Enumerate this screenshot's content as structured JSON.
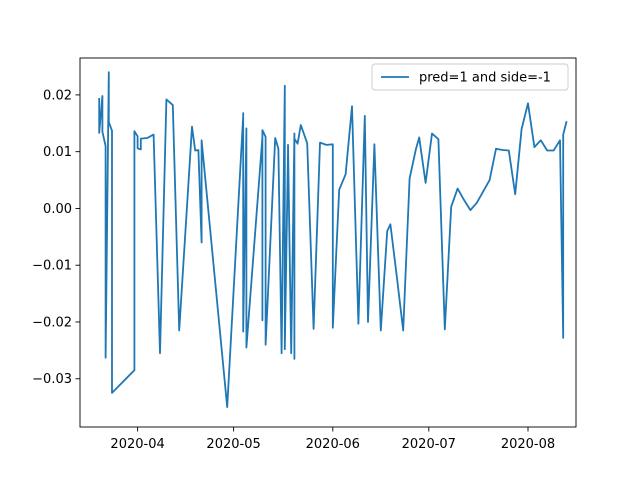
{
  "chart_data": {
    "type": "line",
    "title": "",
    "xlabel": "",
    "ylabel": "",
    "xlim": [
      "2020-03-14",
      "2020-08-16"
    ],
    "ylim": [
      -0.0385,
      0.0265
    ],
    "x_ticks": [
      "2020-04-01",
      "2020-05-01",
      "2020-06-01",
      "2020-07-01",
      "2020-08-01"
    ],
    "x_tick_labels": [
      "2020-04",
      "2020-05",
      "2020-06",
      "2020-07",
      "2020-08"
    ],
    "y_ticks": [
      -0.03,
      -0.02,
      -0.01,
      0.0,
      0.01,
      0.02
    ],
    "y_tick_labels": [
      "−0.03",
      "−0.02",
      "−0.01",
      "0.00",
      "0.01",
      "0.02"
    ],
    "grid": false,
    "legend_position": "top-right",
    "series": [
      {
        "name": "pred=1 and side=-1",
        "color": "#1f77b4",
        "x": [
          "2020-03-20",
          "2020-03-20",
          "2020-03-21",
          "2020-03-21",
          "2020-03-22",
          "2020-03-22",
          "2020-03-22",
          "2020-03-23",
          "2020-03-23",
          "2020-03-24",
          "2020-03-24",
          "2020-03-24",
          "2020-03-31",
          "2020-03-31",
          "2020-04-01",
          "2020-04-01",
          "2020-04-02",
          "2020-04-02",
          "2020-04-04",
          "2020-04-06",
          "2020-04-08",
          "2020-04-10",
          "2020-04-12",
          "2020-04-14",
          "2020-04-18",
          "2020-04-19",
          "2020-04-20",
          "2020-04-21",
          "2020-04-21",
          "2020-04-29",
          "2020-05-04",
          "2020-05-04",
          "2020-05-04",
          "2020-05-05",
          "2020-05-05",
          "2020-05-05",
          "2020-05-10",
          "2020-05-10",
          "2020-05-10",
          "2020-05-11",
          "2020-05-11",
          "2020-05-14",
          "2020-05-15",
          "2020-05-16",
          "2020-05-17",
          "2020-05-17",
          "2020-05-18",
          "2020-05-18",
          "2020-05-19",
          "2020-05-20",
          "2020-05-20",
          "2020-05-20",
          "2020-05-20",
          "2020-05-20",
          "2020-05-21",
          "2020-05-22",
          "2020-05-24",
          "2020-05-26",
          "2020-05-28",
          "2020-05-30",
          "2020-06-01",
          "2020-06-01",
          "2020-06-03",
          "2020-06-05",
          "2020-06-07",
          "2020-06-09",
          "2020-06-11",
          "2020-06-12",
          "2020-06-14",
          "2020-06-16",
          "2020-06-18",
          "2020-06-19",
          "2020-06-21",
          "2020-06-23",
          "2020-06-25",
          "2020-06-27",
          "2020-06-28",
          "2020-06-30",
          "2020-07-02",
          "2020-07-04",
          "2020-07-06",
          "2020-07-08",
          "2020-07-10",
          "2020-07-12",
          "2020-07-14",
          "2020-07-16",
          "2020-07-18",
          "2020-07-20",
          "2020-07-22",
          "2020-07-24",
          "2020-07-26",
          "2020-07-28",
          "2020-07-30",
          "2020-08-01",
          "2020-08-03",
          "2020-08-05",
          "2020-08-07",
          "2020-08-09",
          "2020-08-11",
          "2020-08-12",
          "2020-08-12",
          "2020-08-13"
        ],
        "values": [
          0.0193,
          0.0133,
          0.0198,
          0.0135,
          0.011,
          0.0105,
          -0.0263,
          0.024,
          0.0152,
          0.0137,
          0.0119,
          -0.0325,
          -0.0285,
          0.0136,
          0.0127,
          0.0106,
          0.0104,
          0.0123,
          0.0124,
          0.013,
          -0.0255,
          0.0192,
          0.0182,
          -0.0215,
          0.0144,
          0.0102,
          0.0103,
          -0.006,
          0.012,
          -0.035,
          0.0163,
          0.0168,
          -0.0217,
          0.0141,
          0.0107,
          -0.0245,
          0.0125,
          -0.0197,
          0.0138,
          0.0126,
          -0.024,
          0.0124,
          0.0105,
          -0.0255,
          0.0216,
          -0.0248,
          0.01,
          0.0112,
          -0.0255,
          0.0132,
          0.0131,
          0.0125,
          -0.0265,
          0.0123,
          0.0114,
          0.0147,
          0.0115,
          -0.0212,
          0.0116,
          0.0112,
          0.0113,
          -0.021,
          0.0033,
          0.006,
          0.018,
          -0.0203,
          0.0163,
          -0.02,
          0.0113,
          -0.0215,
          -0.004,
          -0.0028,
          -0.012,
          -0.0215,
          0.0053,
          0.0105,
          0.0125,
          0.0045,
          0.0132,
          0.0122,
          -0.0213,
          0.0003,
          0.0035,
          0.0015,
          -0.0003,
          0.001,
          0.003,
          0.005,
          0.0105,
          0.0103,
          0.0102,
          0.0025,
          0.014,
          0.0185,
          0.0108,
          0.012,
          0.0102,
          0.0102,
          0.012,
          -0.0228,
          0.013,
          0.0152
        ]
      }
    ]
  }
}
